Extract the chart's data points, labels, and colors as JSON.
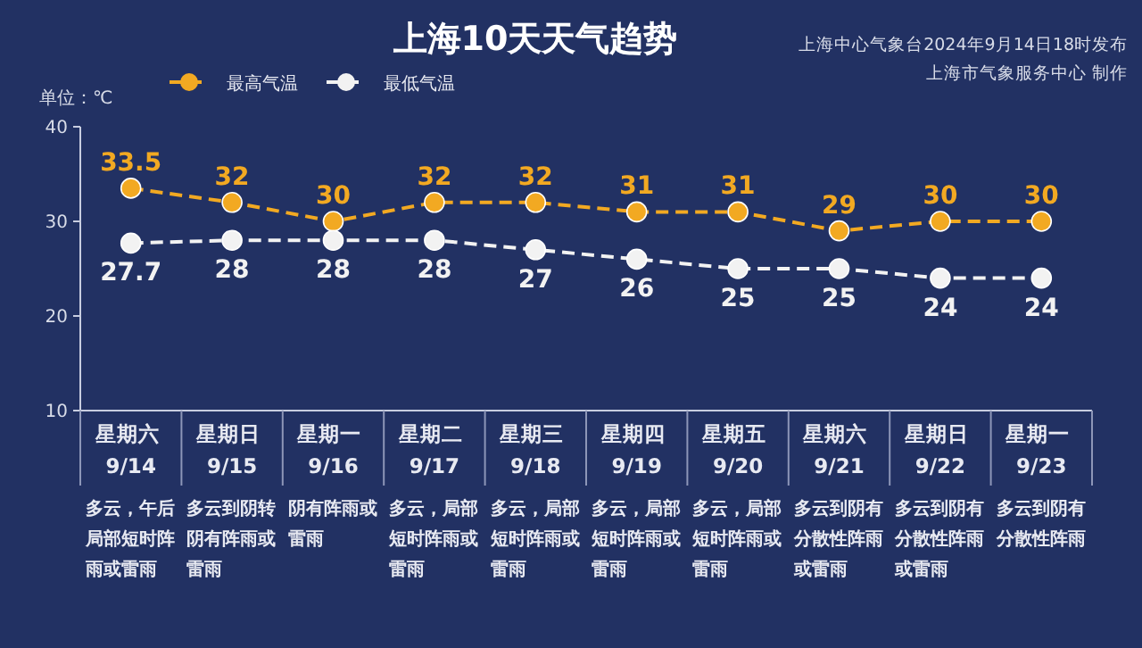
{
  "chart_data": {
    "type": "line",
    "title": "上海10天天气趋势",
    "ylabel": "单位：℃",
    "categories": [
      "星期六 9/14",
      "星期日 9/15",
      "星期一 9/16",
      "星期二 9/17",
      "星期三 9/18",
      "星期四 9/19",
      "星期五 9/20",
      "星期六 9/21",
      "星期日 9/22",
      "星期一 9/23"
    ],
    "series": [
      {
        "name": "最高气温",
        "color": "#f2a922",
        "values": [
          33.5,
          32,
          30,
          32,
          32,
          31,
          31,
          29,
          30,
          30
        ]
      },
      {
        "name": "最低气温",
        "color": "#f2f2f2",
        "values": [
          27.7,
          28,
          28,
          28,
          27,
          26,
          25,
          25,
          24,
          24
        ]
      }
    ],
    "ylim": [
      10,
      40
    ],
    "yticks": [
      10,
      20,
      30,
      40
    ],
    "grid": false,
    "legend": "top left",
    "marker": "circle",
    "line_style": "dashed",
    "data_labels": true,
    "annotations": [
      "上海中心气象台2024年9月14日18时发布",
      "上海市气象服务中心 制作",
      "多云，午后局部短时阵雨或雷雨",
      "多云到阴转阴有阵雨或雷雨",
      "阴有阵雨或雷雨",
      "多云，局部短时阵雨或雷雨",
      "多云，局部短时阵雨或雷雨",
      "多云，局部短时阵雨或雷雨",
      "多云，局部短时阵雨或雷雨",
      "多云到阴有分散性阵雨或雷雨",
      "多云到阴有分散性阵雨或雷雨",
      "多云到阴有分散性阵雨"
    ]
  }
}
